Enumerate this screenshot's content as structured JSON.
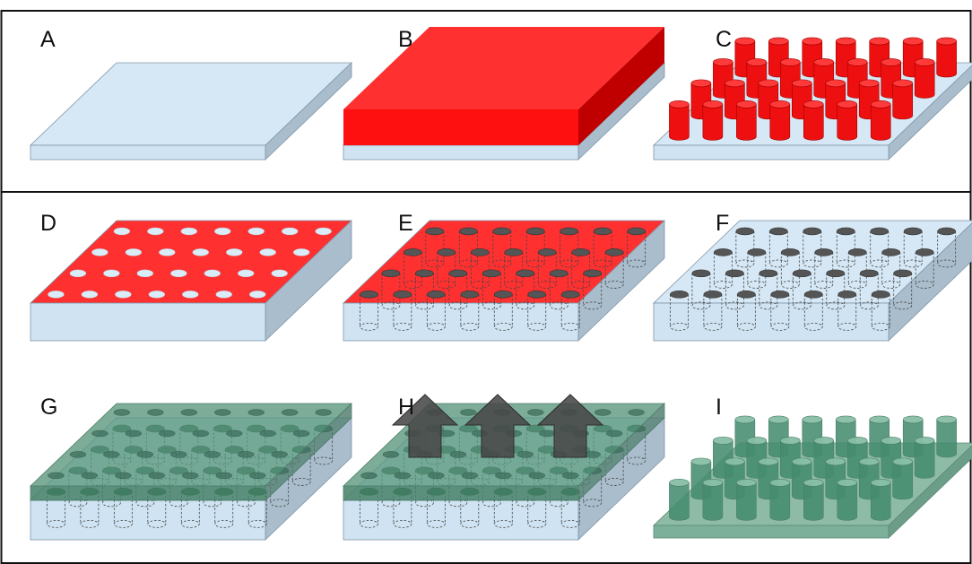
{
  "panels": [
    {
      "id": "A",
      "label": "A"
    },
    {
      "id": "B",
      "label": "B"
    },
    {
      "id": "C",
      "label": "C"
    },
    {
      "id": "D",
      "label": "D"
    },
    {
      "id": "E",
      "label": "E"
    },
    {
      "id": "F",
      "label": "F"
    },
    {
      "id": "G",
      "label": "G"
    },
    {
      "id": "H",
      "label": "H"
    },
    {
      "id": "I",
      "label": "I"
    }
  ],
  "colors": {
    "substrate_top": "#d6e8f5",
    "substrate_front": "#cfe3f2",
    "substrate_side": "#a9bdcc",
    "substrate_edge": "#7f95a8",
    "resist_top": "#ff3030",
    "resist_front": "#ff1010",
    "resist_side": "#c00000",
    "hole_dark": "#555555",
    "polymer_top": "rgba(88,150,124,0.78)",
    "polymer_front": "rgba(68,128,102,0.85)",
    "polymer_side": "rgba(75,120,105,0.80)",
    "arrow": "#484848"
  }
}
